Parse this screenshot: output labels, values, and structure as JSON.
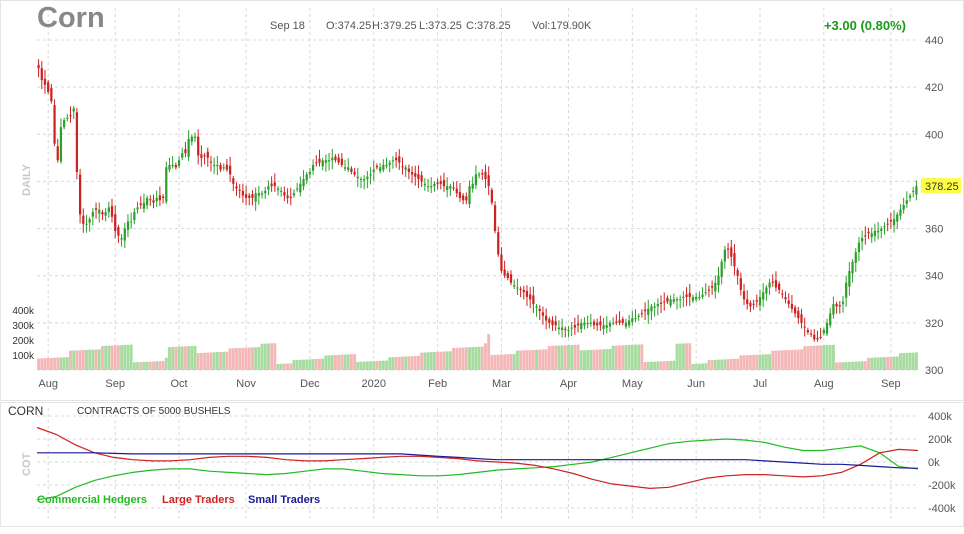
{
  "header": {
    "title": "Corn",
    "date": "Sep 18",
    "open": "O:374.25",
    "high": "H:379.25",
    "low": "L:373.25",
    "close": "C:378.25",
    "volume": "Vol:179.90K",
    "change": "+3.00 (0.80%)",
    "change_color": "#1a9a1a",
    "last_price_label": "378.25",
    "last_price_bg": "#ffff44",
    "side_label": "DAILY"
  },
  "cot": {
    "title": "CORN",
    "subtitle": "CONTRACTS OF 5000 BUSHELS",
    "side_label": "COT",
    "legend": [
      {
        "label": "Commercial Hedgers",
        "color": "#22bb22"
      },
      {
        "label": "Large Traders",
        "color": "#cc2222"
      },
      {
        "label": "Small Traders",
        "color": "#1a1a99"
      }
    ]
  },
  "chart_data": [
    {
      "type": "candlestick",
      "title": "Corn",
      "price_axis": {
        "ticks": [
          "440",
          "420",
          "400",
          "380",
          "360",
          "340",
          "320",
          "300"
        ],
        "ylim": [
          300,
          440
        ]
      },
      "volume_axis": {
        "ticks": [
          "400k",
          "300k",
          "200k",
          "100k"
        ]
      },
      "x_ticks": [
        "Aug",
        "Sep",
        "Oct",
        "Nov",
        "Dec",
        "2020",
        "Feb",
        "Mar",
        "Apr",
        "May",
        "Jun",
        "Jul",
        "Aug",
        "Sep"
      ],
      "x_tick_index": [
        3,
        24,
        44,
        65,
        85,
        105,
        125,
        145,
        166,
        186,
        206,
        226,
        246,
        267
      ],
      "grid": true,
      "up_color": "#2aa02a",
      "down_color": "#cc2222",
      "volume_up_color": "#a8dba0",
      "volume_down_color": "#f4b7b7",
      "closes": [
        428,
        423,
        421,
        418,
        414,
        396,
        389,
        403,
        406,
        407,
        408,
        411,
        384,
        366,
        362,
        362,
        364,
        367,
        368,
        368,
        366,
        367,
        369,
        365,
        359,
        357,
        356,
        360,
        363,
        363,
        367,
        369,
        370,
        371,
        373,
        372,
        371,
        373,
        372,
        373,
        386,
        387,
        387,
        386,
        389,
        392,
        392,
        398,
        399,
        399,
        391,
        390,
        391,
        390,
        388,
        387,
        387,
        385,
        386,
        385,
        383,
        379,
        377,
        376,
        374,
        373,
        373,
        373,
        375,
        375,
        375,
        376,
        378,
        378,
        378,
        377,
        376,
        374,
        373,
        373,
        375,
        377,
        379,
        381,
        383,
        384,
        387,
        388,
        388,
        389,
        389,
        389,
        390,
        389,
        388,
        387,
        386,
        386,
        384,
        383,
        382,
        381,
        381,
        382,
        383,
        385,
        386,
        386,
        387,
        387,
        388,
        389,
        389,
        388,
        386,
        386,
        384,
        383,
        382,
        381,
        380,
        379,
        378,
        378,
        379,
        379,
        379,
        378,
        378,
        378,
        377,
        375,
        373,
        372,
        372,
        378,
        379,
        383,
        383,
        383,
        381,
        378,
        371,
        359,
        349,
        342,
        340,
        339,
        337,
        336,
        335,
        334,
        333,
        331,
        330,
        328,
        327,
        325,
        323,
        321,
        320,
        319,
        319,
        318,
        318,
        317,
        317,
        318,
        318,
        319,
        320,
        320,
        320,
        320,
        319,
        319,
        319,
        319,
        319,
        320,
        320,
        320,
        320,
        320,
        320,
        321,
        322,
        322,
        323,
        324,
        325,
        326,
        327,
        327,
        328,
        328,
        329,
        329,
        330,
        330,
        330,
        330,
        331,
        331,
        331,
        331,
        331,
        331,
        332,
        333,
        334,
        335,
        337,
        340,
        346,
        351,
        351,
        348,
        344,
        340,
        334,
        330,
        328,
        327,
        328,
        329,
        331,
        333,
        335,
        337,
        337,
        335,
        334,
        332,
        330,
        328,
        326,
        324,
        322,
        320,
        318,
        316,
        315,
        313,
        313,
        314,
        317,
        320,
        324,
        328,
        327,
        327,
        329,
        337,
        342,
        346,
        350,
        354,
        356,
        357,
        358,
        358,
        359,
        359,
        360,
        361,
        362,
        363,
        364,
        366,
        368,
        370,
        372,
        374,
        376,
        378
      ],
      "cot_axis": {
        "ticks": [
          "400k",
          "200k",
          "0k",
          "-200k",
          "-400k"
        ],
        "ylim": [
          -400,
          400
        ]
      },
      "cot_series": [
        {
          "name": "Commercial Hedgers",
          "color": "#22bb22",
          "values": [
            -330,
            -300,
            -220,
            -160,
            -120,
            -90,
            -70,
            -60,
            -60,
            -80,
            -90,
            -100,
            -110,
            -100,
            -80,
            -60,
            -60,
            -80,
            -100,
            -110,
            -120,
            -120,
            -110,
            -90,
            -70,
            -60,
            -50,
            -40,
            -20,
            0,
            40,
            80,
            120,
            160,
            180,
            190,
            200,
            190,
            170,
            130,
            100,
            100,
            120,
            140,
            80,
            -40,
            -60
          ]
        },
        {
          "name": "Large Traders",
          "color": "#cc2222",
          "values": [
            300,
            240,
            150,
            80,
            40,
            20,
            10,
            10,
            20,
            40,
            50,
            50,
            40,
            20,
            10,
            10,
            20,
            30,
            40,
            50,
            50,
            40,
            30,
            10,
            0,
            -10,
            -30,
            -60,
            -100,
            -150,
            -190,
            -210,
            -230,
            -220,
            -180,
            -140,
            -120,
            -110,
            -110,
            -120,
            -130,
            -120,
            -90,
            -20,
            80,
            110,
            100
          ]
        },
        {
          "name": "Small Traders",
          "color": "#1a1a99",
          "values": [
            80,
            80,
            80,
            80,
            75,
            70,
            70,
            70,
            70,
            70,
            70,
            70,
            70,
            70,
            70,
            70,
            70,
            70,
            70,
            70,
            60,
            50,
            40,
            30,
            20,
            20,
            20,
            20,
            20,
            20,
            20,
            20,
            20,
            20,
            20,
            20,
            20,
            20,
            10,
            0,
            -10,
            -20,
            -20,
            -30,
            -40,
            -50,
            -55
          ]
        }
      ]
    }
  ]
}
